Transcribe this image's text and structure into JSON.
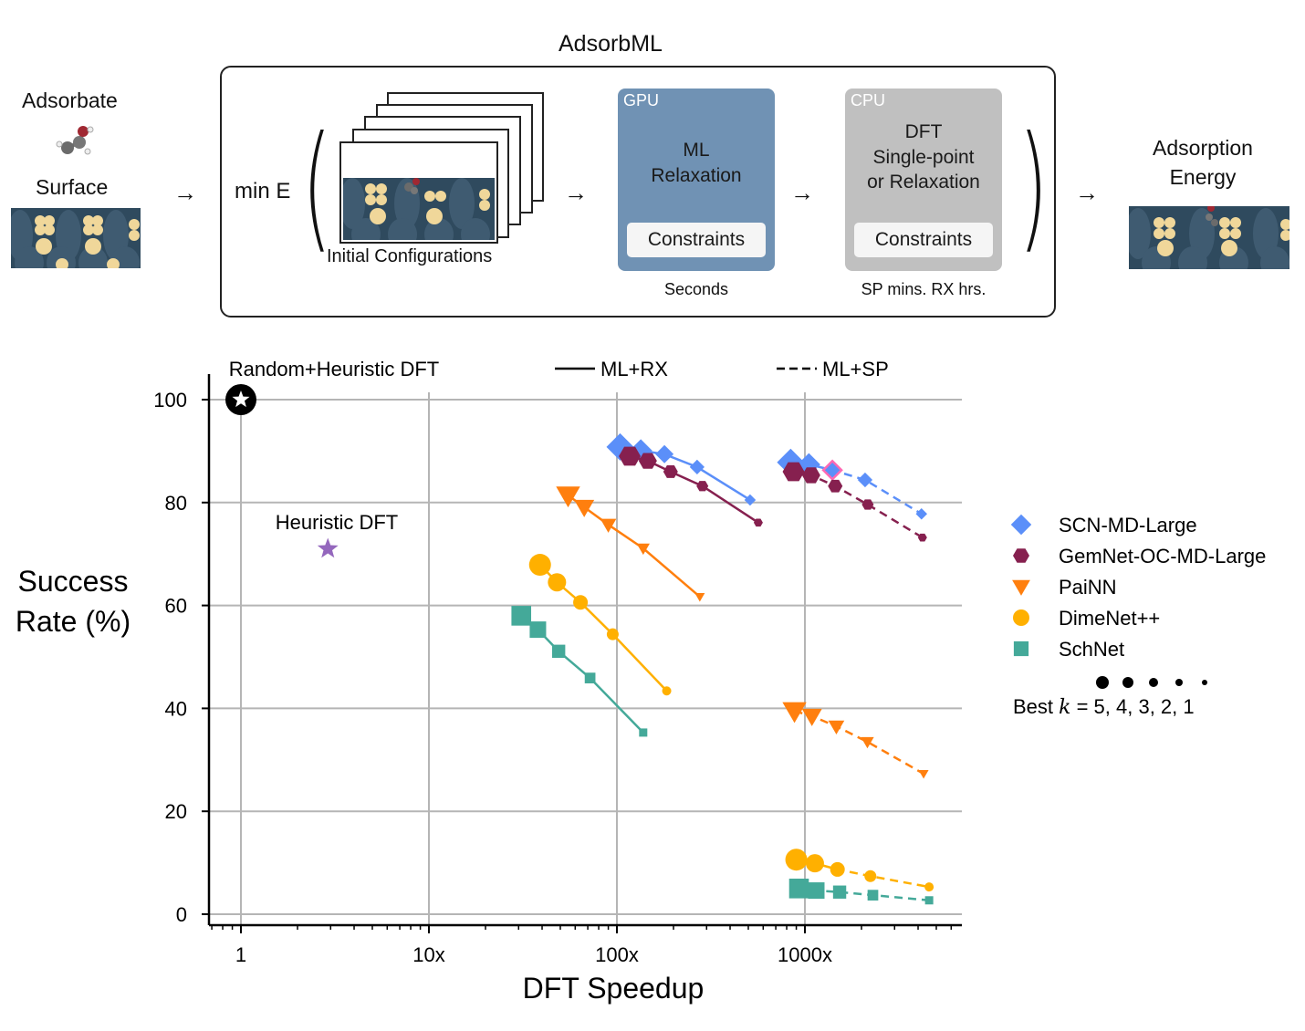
{
  "diagram": {
    "title": "AdsorbML",
    "inputs": {
      "adsorbate": "Adsorbate",
      "surface": "Surface"
    },
    "min_label": "min E",
    "initial_configs": "Initial Configurations",
    "gpu_box": {
      "tag": "GPU",
      "line1": "ML",
      "line2": "Relaxation",
      "constraints": "Constraints",
      "time": "Seconds",
      "color": "#7092b4"
    },
    "cpu_box": {
      "tag": "CPU",
      "line1": "DFT",
      "line2": "Single-point",
      "line3": "or Relaxation",
      "constraints": "Constraints",
      "time": "SP mins. RX hrs.",
      "color": "#c0c0c0"
    },
    "output": {
      "line1": "Adsorption",
      "line2": "Energy"
    },
    "arrow_glyph": "→"
  },
  "chart_data": {
    "type": "line",
    "xscale": "log",
    "xlabel": "DFT Speedup",
    "ylabel_line1": "Success",
    "ylabel_line2": "Rate (%)",
    "xlim": [
      0.65,
      6500
    ],
    "ylim": [
      -2,
      105
    ],
    "xticks": [
      {
        "v": 1,
        "label": "1"
      },
      {
        "v": 10,
        "label": "10x"
      },
      {
        "v": 100,
        "label": "100x"
      },
      {
        "v": 1000,
        "label": "1000x"
      }
    ],
    "yticks": [
      0,
      20,
      40,
      60,
      80,
      100
    ],
    "grid": true,
    "line_style_legend": {
      "rx": "ML+RX",
      "sp": "ML+SP"
    },
    "annotations": [
      {
        "label": "Random+Heuristic DFT",
        "x": 1,
        "y": 100,
        "marker": "star-circle",
        "color": "#000000"
      },
      {
        "label": "Heuristic DFT",
        "x": 2.9,
        "y": 71,
        "marker": "star",
        "color": "#9467bd"
      }
    ],
    "series": [
      {
        "name": "SCN-MD-Large",
        "marker": "diamond",
        "color": "#5b8ff9",
        "rx": {
          "x": [
            104,
            134,
            179,
            267,
            511
          ],
          "y": [
            90.8,
            90.1,
            89.4,
            86.9,
            80.5
          ]
        },
        "sp": {
          "x": [
            840,
            1050,
            1400,
            2090,
            4170
          ],
          "y": [
            87.8,
            87.4,
            86.3,
            84.4,
            77.8
          ]
        }
      },
      {
        "name": "GemNet-OC-MD-Large",
        "marker": "hexagon",
        "color": "#86204f",
        "rx": {
          "x": [
            117,
            146,
            193,
            285,
            565
          ],
          "y": [
            89.0,
            88.1,
            86.0,
            83.2,
            76.1
          ]
        },
        "sp": {
          "x": [
            870,
            1080,
            1450,
            2160,
            4220
          ],
          "y": [
            86.0,
            85.3,
            83.2,
            79.6,
            73.2
          ]
        }
      },
      {
        "name": "PaiNN",
        "marker": "triangle-down",
        "color": "#ff7f0e",
        "rx": {
          "x": [
            55,
            67,
            90,
            138,
            276
          ],
          "y": [
            81.4,
            79.1,
            75.7,
            71.1,
            61.7
          ]
        },
        "sp": {
          "x": [
            880,
            1090,
            1470,
            2150,
            4280
          ],
          "y": [
            39.5,
            38.5,
            36.5,
            33.5,
            27.3
          ]
        }
      },
      {
        "name": "DimeNet++",
        "marker": "circle",
        "color": "#ffb000",
        "rx": {
          "x": [
            39,
            48,
            64,
            95,
            184
          ],
          "y": [
            67.9,
            64.5,
            60.6,
            54.4,
            43.4
          ]
        },
        "sp": {
          "x": [
            900,
            1130,
            1490,
            2230,
            4580
          ],
          "y": [
            10.6,
            9.9,
            8.7,
            7.4,
            5.3
          ]
        }
      },
      {
        "name": "SchNet",
        "marker": "square",
        "color": "#44a999",
        "rx": {
          "x": [
            31,
            38,
            49,
            72,
            138
          ],
          "y": [
            58.0,
            55.3,
            51.1,
            45.9,
            35.3
          ]
        },
        "sp": {
          "x": [
            930,
            1150,
            1530,
            2300,
            4580
          ],
          "y": [
            5.0,
            4.6,
            4.3,
            3.7,
            2.7
          ]
        }
      }
    ],
    "highlight_point": {
      "series": "SCN-MD-Large",
      "x": 1400,
      "y": 86.3,
      "edge_color": "#ff69b4"
    },
    "size_legend": {
      "label_prefix": "Best ",
      "k_symbol": "k",
      "label_suffix": " = 5, 4, 3, 2, 1",
      "k_values": [
        5,
        4,
        3,
        2,
        1
      ]
    }
  }
}
